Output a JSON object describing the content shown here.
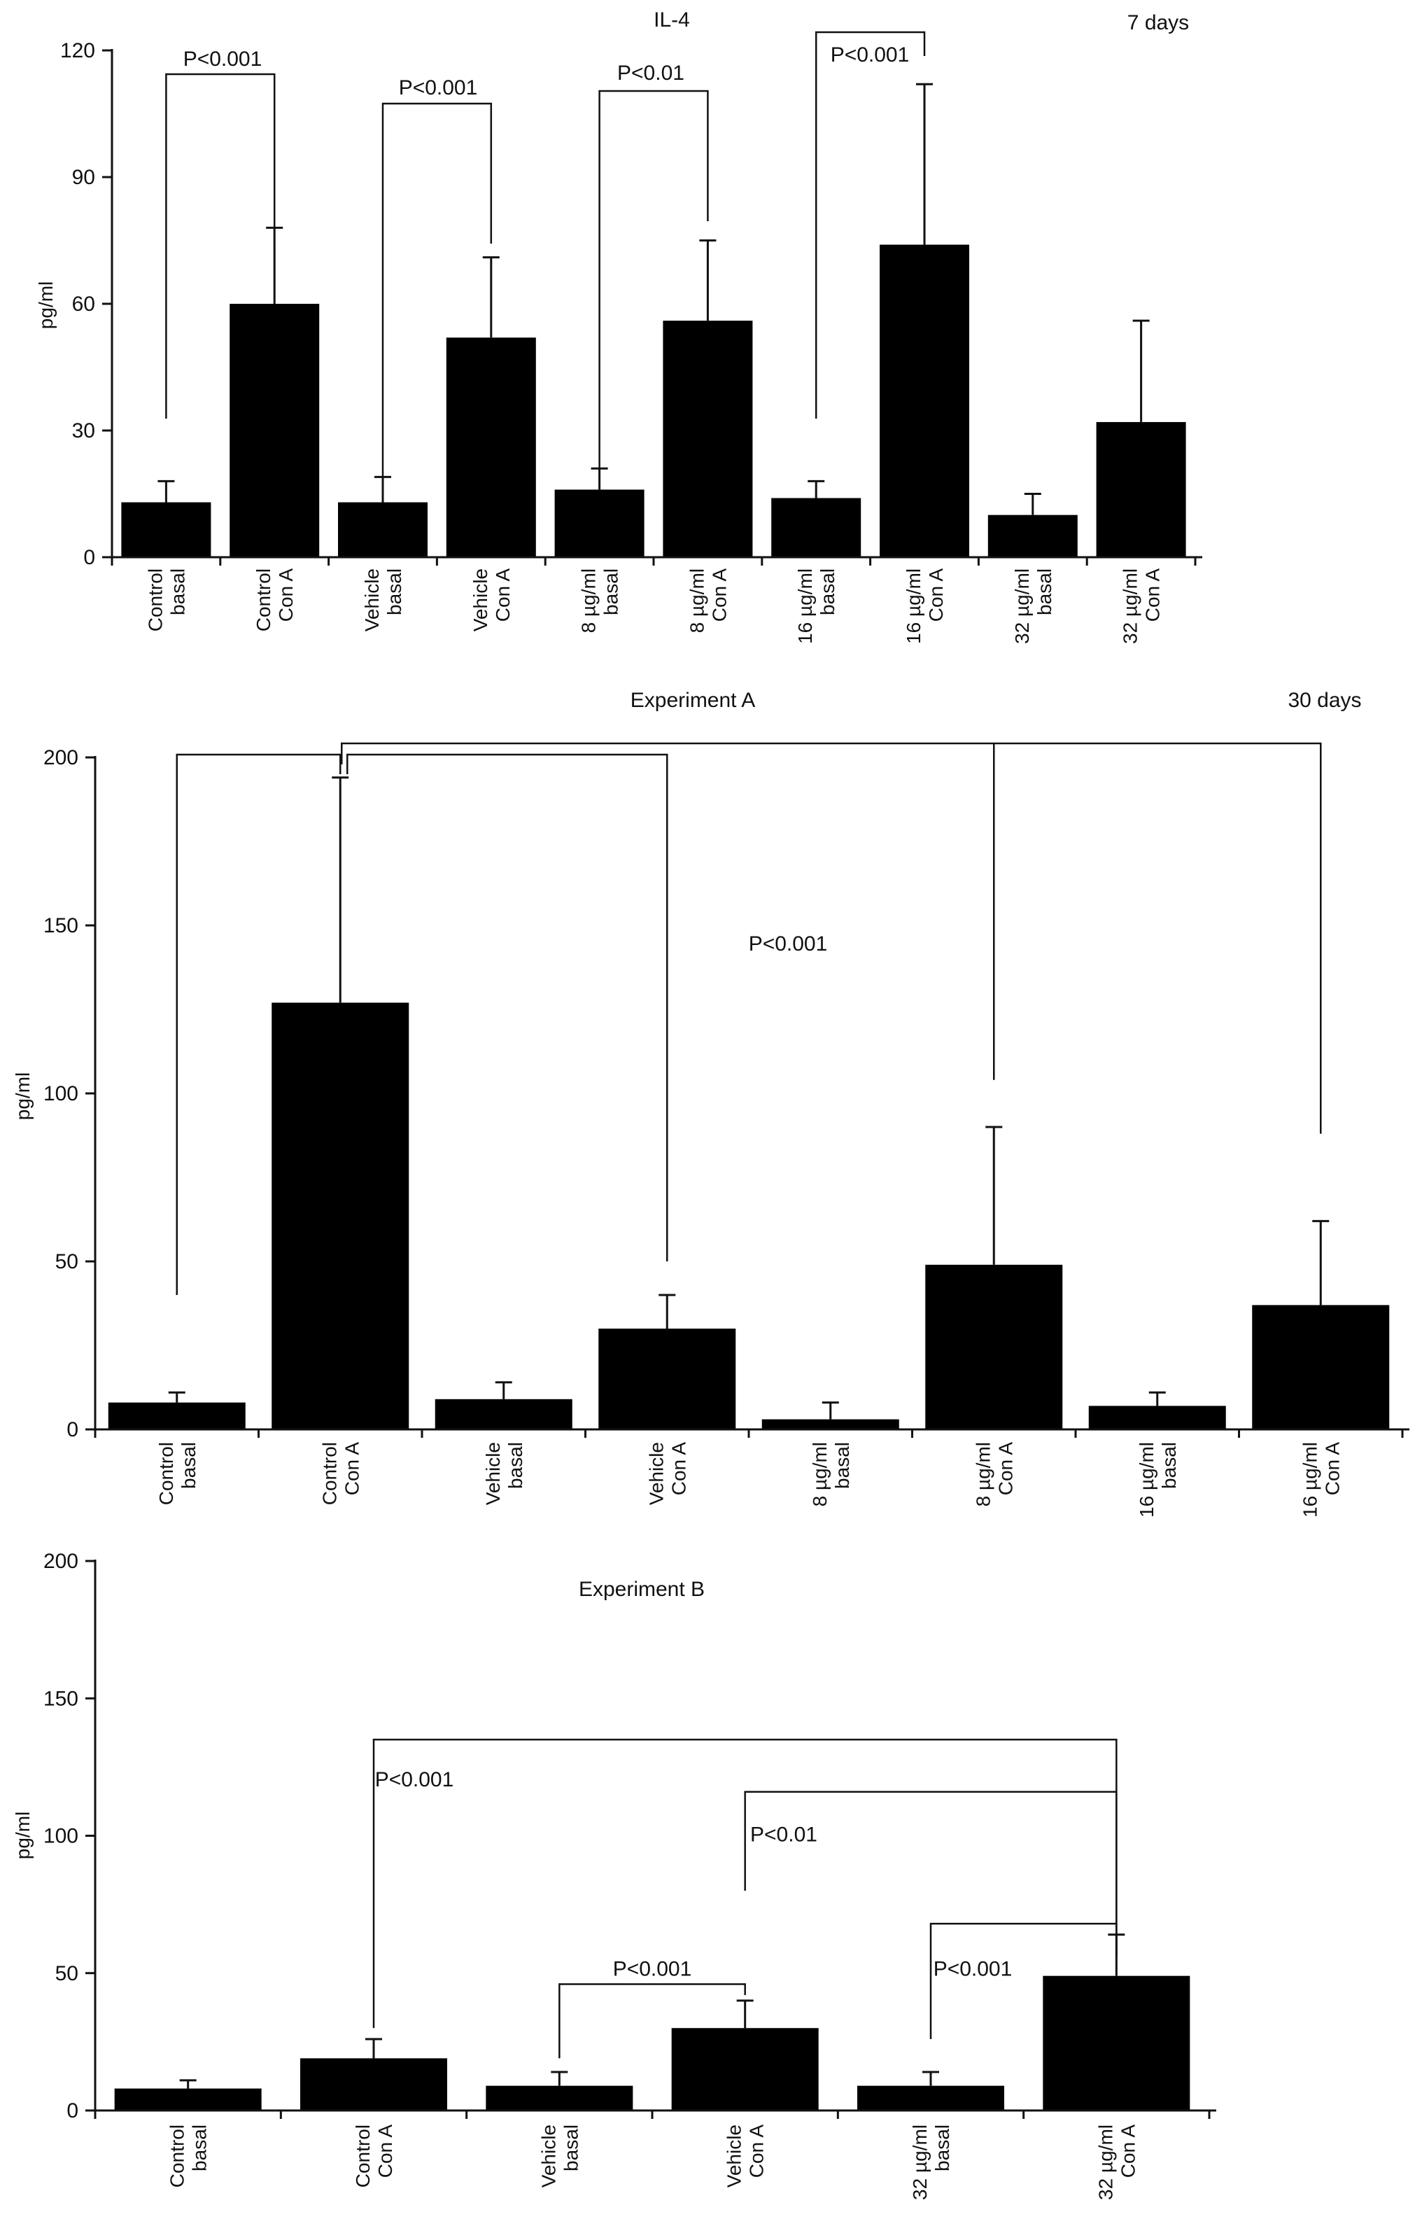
{
  "chart_data": [
    {
      "type": "bar",
      "title": "IL-4",
      "subtitle": "7 days",
      "xlabel": "",
      "ylabel": "pg/ml",
      "ylim": [
        0,
        120
      ],
      "yticks": [
        0,
        30,
        60,
        90,
        120
      ],
      "categories": [
        [
          "Control",
          "basal"
        ],
        [
          "Control",
          "Con A"
        ],
        [
          "Vehicle",
          "basal"
        ],
        [
          "Vehicle",
          "Con A"
        ],
        [
          "8 µg/ml",
          "basal"
        ],
        [
          "8 µg/ml",
          "Con A"
        ],
        [
          "16 µg/ml",
          "basal"
        ],
        [
          "16 µg/ml",
          "Con A"
        ],
        [
          "32 µg/ml",
          "basal"
        ],
        [
          "32 µg/ml",
          "Con A"
        ]
      ],
      "values": [
        13,
        60,
        13,
        52,
        16,
        56,
        14,
        74,
        10,
        32
      ],
      "error": [
        5,
        18,
        6,
        19,
        5,
        19,
        4,
        38,
        5,
        24
      ],
      "comparisons": [
        {
          "from": 0,
          "to": 1,
          "label": "P<0.001"
        },
        {
          "from": 2,
          "to": 3,
          "label": "P<0.001"
        },
        {
          "from": 4,
          "to": 5,
          "label": "P<0.01"
        },
        {
          "from": 6,
          "to": 7,
          "label": "P<0.001"
        }
      ],
      "grid": false
    },
    {
      "type": "bar",
      "title": "Experiment A",
      "subtitle": "30 days",
      "xlabel": "",
      "ylabel": "pg/ml",
      "ylim": [
        0,
        200
      ],
      "yticks": [
        0,
        50,
        100,
        150,
        200
      ],
      "categories": [
        [
          "Control",
          "basal"
        ],
        [
          "Control",
          "Con A"
        ],
        [
          "Vehicle",
          "basal"
        ],
        [
          "Vehicle",
          "Con A"
        ],
        [
          "8 µg/ml",
          "basal"
        ],
        [
          "8 µg/ml",
          "Con A"
        ],
        [
          "16 µg/ml",
          "basal"
        ],
        [
          "16 µg/ml",
          "Con A"
        ]
      ],
      "values": [
        8,
        127,
        9,
        30,
        3,
        49,
        7,
        37
      ],
      "error": [
        3,
        67,
        5,
        10,
        5,
        41,
        4,
        25
      ],
      "comparisons": [
        {
          "from": 1,
          "to": 0
        },
        {
          "from": 1,
          "to": 3
        },
        {
          "from": 1,
          "to": 5
        },
        {
          "from": 1,
          "to": 7
        }
      ],
      "annotation": "P<0.001",
      "grid": false
    },
    {
      "type": "bar",
      "title": "Experiment B",
      "xlabel": "",
      "ylabel": "pg/ml",
      "ylim": [
        0,
        200
      ],
      "yticks": [
        0,
        50,
        100,
        150,
        200
      ],
      "categories": [
        [
          "Control",
          "basal"
        ],
        [
          "Control",
          "Con A"
        ],
        [
          "Vehicle",
          "basal"
        ],
        [
          "Vehicle",
          "Con A"
        ],
        [
          "32 µg/ml",
          "basal"
        ],
        [
          "32 µg/ml",
          "Con A"
        ]
      ],
      "values": [
        8,
        19,
        9,
        30,
        9,
        49
      ],
      "error": [
        3,
        7,
        5,
        10,
        5,
        15
      ],
      "comparisons": [
        {
          "from": 1,
          "to": 5,
          "label": "P<0.001"
        },
        {
          "from": 3,
          "to": 5,
          "label": "P<0.01"
        },
        {
          "from": 2,
          "to": 3,
          "label": "P<0.001"
        },
        {
          "from": 4,
          "to": 5,
          "label": "P<0.001"
        }
      ],
      "grid": false
    }
  ]
}
